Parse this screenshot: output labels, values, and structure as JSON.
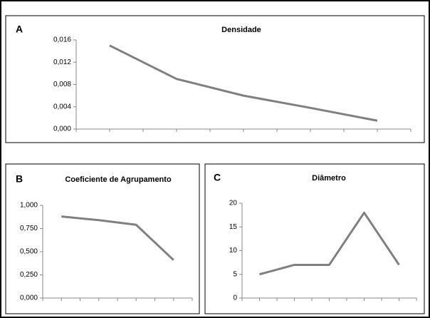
{
  "chart_data": [
    {
      "type": "line",
      "panel": "A",
      "title": "Densidade",
      "categories": [
        null,
        null,
        null,
        null,
        null
      ],
      "values": [
        0.015,
        0.009,
        0.006,
        0.0038,
        0.0015
      ],
      "color": "#808080",
      "ylim": [
        0,
        0.016
      ],
      "yticks": [
        {
          "value": 0,
          "label": "0,000"
        },
        {
          "value": 0.004,
          "label": "0,004"
        },
        {
          "value": 0.008,
          "label": "0,008"
        },
        {
          "value": 0.012,
          "label": "0,012"
        },
        {
          "value": 0.016,
          "label": "0,016"
        }
      ]
    },
    {
      "type": "line",
      "panel": "B",
      "title": "Coeficiente de Agrupamento",
      "categories": [
        null,
        null,
        null,
        null
      ],
      "values": [
        0.88,
        0.84,
        0.79,
        0.41
      ],
      "color": "#808080",
      "ylim": [
        0,
        1
      ],
      "yticks": [
        {
          "value": 0,
          "label": "0,000"
        },
        {
          "value": 0.25,
          "label": "0,250"
        },
        {
          "value": 0.5,
          "label": "0,500"
        },
        {
          "value": 0.75,
          "label": "0,750"
        },
        {
          "value": 1,
          "label": "1,000"
        }
      ]
    },
    {
      "type": "line",
      "panel": "C",
      "title": "Diâmetro",
      "categories": [
        null,
        null,
        null,
        null,
        null
      ],
      "values": [
        5,
        7,
        7,
        18,
        7
      ],
      "color": "#808080",
      "ylim": [
        0,
        20
      ],
      "yticks": [
        0,
        5,
        10,
        15,
        20
      ]
    }
  ]
}
